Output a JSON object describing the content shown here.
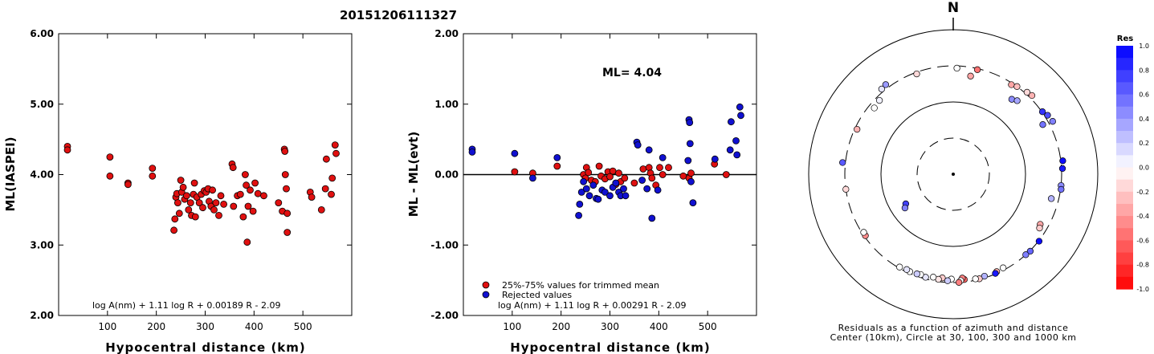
{
  "figure_title": "20151206111327",
  "chart_data": [
    {
      "type": "scatter",
      "ylabel": "ML(IASPEI)",
      "xlabel": "Hypocentral distance (km)",
      "xlim": [
        0,
        600
      ],
      "ylim": [
        2.0,
        6.0
      ],
      "x_ticks": [
        "100",
        "200",
        "300",
        "400",
        "500"
      ],
      "y_ticks": [
        "6.00",
        "5.00",
        "4.00",
        "3.00",
        "2.00"
      ],
      "formula": "log A(nm) + 1.11 log R + 0.00189 R - 2.09",
      "series": [
        {
          "color": "#e01010",
          "points": [
            [
              18,
              4.4
            ],
            [
              18,
              4.35
            ],
            [
              105,
              4.25
            ],
            [
              105,
              3.98
            ],
            [
              142,
              3.88
            ],
            [
              142,
              3.86
            ],
            [
              192,
              4.09
            ],
            [
              192,
              3.98
            ],
            [
              236,
              3.21
            ],
            [
              238,
              3.37
            ],
            [
              240,
              3.68
            ],
            [
              242,
              3.73
            ],
            [
              244,
              3.6
            ],
            [
              247,
              3.45
            ],
            [
              250,
              3.92
            ],
            [
              252,
              3.75
            ],
            [
              255,
              3.82
            ],
            [
              258,
              3.65
            ],
            [
              262,
              3.7
            ],
            [
              266,
              3.5
            ],
            [
              270,
              3.6
            ],
            [
              272,
              3.42
            ],
            [
              276,
              3.72
            ],
            [
              278,
              3.88
            ],
            [
              280,
              3.4
            ],
            [
              283,
              3.68
            ],
            [
              288,
              3.6
            ],
            [
              292,
              3.72
            ],
            [
              295,
              3.53
            ],
            [
              298,
              3.77
            ],
            [
              302,
              3.75
            ],
            [
              306,
              3.8
            ],
            [
              308,
              3.62
            ],
            [
              312,
              3.55
            ],
            [
              315,
              3.78
            ],
            [
              318,
              3.5
            ],
            [
              322,
              3.6
            ],
            [
              328,
              3.42
            ],
            [
              332,
              3.7
            ],
            [
              338,
              3.58
            ],
            [
              355,
              4.15
            ],
            [
              357,
              4.1
            ],
            [
              358,
              3.55
            ],
            [
              366,
              3.7
            ],
            [
              372,
              3.72
            ],
            [
              378,
              3.4
            ],
            [
              382,
              4.0
            ],
            [
              384,
              3.85
            ],
            [
              386,
              3.04
            ],
            [
              388,
              3.55
            ],
            [
              392,
              3.78
            ],
            [
              398,
              3.48
            ],
            [
              402,
              3.88
            ],
            [
              408,
              3.73
            ],
            [
              420,
              3.7
            ],
            [
              450,
              3.6
            ],
            [
              458,
              3.48
            ],
            [
              462,
              4.36
            ],
            [
              463,
              4.33
            ],
            [
              464,
              4.0
            ],
            [
              466,
              3.8
            ],
            [
              468,
              3.18
            ],
            [
              468,
              3.45
            ],
            [
              515,
              3.75
            ],
            [
              518,
              3.68
            ],
            [
              538,
              3.5
            ],
            [
              546,
              3.8
            ],
            [
              548,
              4.22
            ],
            [
              558,
              3.72
            ],
            [
              560,
              3.95
            ],
            [
              566,
              4.42
            ],
            [
              568,
              4.3
            ]
          ]
        }
      ]
    },
    {
      "type": "scatter",
      "ylabel": "ML - ML(evt)",
      "xlabel": "Hypocentral distance (km)",
      "xlim": [
        0,
        600
      ],
      "ylim": [
        -2.0,
        2.0
      ],
      "x_ticks": [
        "100",
        "200",
        "300",
        "400",
        "500"
      ],
      "y_ticks": [
        "2.00",
        "1.00",
        "0.00",
        "-1.00",
        "-2.00"
      ],
      "annotation": "ML= 4.04",
      "formula": "log A(nm) + 1.11 log R + 0.00291 R - 2.09",
      "reference_line": 0.0,
      "legend": [
        {
          "label": "25%-75% values for trimmed mean",
          "color": "#e01010"
        },
        {
          "label": "Rejected values",
          "color": "#1010d0"
        }
      ],
      "series": [
        {
          "name": "25%-75% values for trimmed mean",
          "color": "#e01010",
          "points": [
            [
              105,
              0.04
            ],
            [
              142,
              0.02
            ],
            [
              192,
              0.12
            ],
            [
              246,
              0.0
            ],
            [
              250,
              -0.05
            ],
            [
              252,
              0.1
            ],
            [
              256,
              0.03
            ],
            [
              262,
              -0.08
            ],
            [
              270,
              -0.1
            ],
            [
              278,
              0.12
            ],
            [
              282,
              -0.02
            ],
            [
              290,
              -0.06
            ],
            [
              296,
              0.04
            ],
            [
              300,
              -0.03
            ],
            [
              306,
              0.05
            ],
            [
              312,
              -0.14
            ],
            [
              318,
              0.02
            ],
            [
              322,
              -0.1
            ],
            [
              330,
              -0.05
            ],
            [
              350,
              -0.12
            ],
            [
              368,
              0.08
            ],
            [
              380,
              0.1
            ],
            [
              383,
              0.02
            ],
            [
              386,
              -0.05
            ],
            [
              394,
              -0.15
            ],
            [
              402,
              0.1
            ],
            [
              408,
              0.0
            ],
            [
              420,
              0.1
            ],
            [
              450,
              -0.02
            ],
            [
              462,
              -0.05
            ],
            [
              466,
              0.02
            ],
            [
              514,
              0.15
            ],
            [
              538,
              0.0
            ]
          ]
        },
        {
          "name": "Rejected values",
          "color": "#1010d0",
          "points": [
            [
              18,
              0.36
            ],
            [
              18,
              0.32
            ],
            [
              105,
              0.3
            ],
            [
              142,
              -0.05
            ],
            [
              192,
              0.24
            ],
            [
              236,
              -0.58
            ],
            [
              238,
              -0.42
            ],
            [
              242,
              -0.25
            ],
            [
              246,
              -0.1
            ],
            [
              252,
              -0.2
            ],
            [
              258,
              -0.3
            ],
            [
              266,
              -0.15
            ],
            [
              272,
              -0.34
            ],
            [
              276,
              -0.35
            ],
            [
              284,
              -0.22
            ],
            [
              290,
              -0.25
            ],
            [
              300,
              -0.3
            ],
            [
              306,
              -0.18
            ],
            [
              312,
              -0.12
            ],
            [
              318,
              -0.25
            ],
            [
              322,
              -0.3
            ],
            [
              328,
              -0.2
            ],
            [
              332,
              -0.3
            ],
            [
              355,
              0.46
            ],
            [
              357,
              0.42
            ],
            [
              366,
              -0.08
            ],
            [
              376,
              -0.2
            ],
            [
              380,
              0.35
            ],
            [
              386,
              -0.62
            ],
            [
              398,
              -0.22
            ],
            [
              408,
              0.24
            ],
            [
              460,
              0.2
            ],
            [
              462,
              0.78
            ],
            [
              463,
              0.74
            ],
            [
              464,
              0.44
            ],
            [
              466,
              -0.1
            ],
            [
              470,
              -0.4
            ],
            [
              515,
              0.22
            ],
            [
              546,
              0.35
            ],
            [
              548,
              0.75
            ],
            [
              558,
              0.48
            ],
            [
              560,
              0.28
            ],
            [
              566,
              0.96
            ],
            [
              568,
              0.84
            ]
          ]
        }
      ]
    },
    {
      "type": "scatter",
      "subtype": "polar",
      "north_label": "N",
      "caption_lines": [
        "Residuals as a function of azimuth and distance",
        "Center (10km), Circle at 30, 100, 300 and 1000 km"
      ],
      "colorbar": {
        "title": "Res",
        "ticks": [
          "1.0",
          "0.8",
          "0.6",
          "0.4",
          "0.2",
          "0.0",
          "-0.2",
          "-0.4",
          "-0.6",
          "-0.8",
          "-1.0"
        ],
        "range": [
          -1.0,
          1.0
        ],
        "positive_color": "#0000ff",
        "negative_color": "#ff0000"
      },
      "rings_km": [
        30,
        100,
        300,
        1000
      ],
      "points": [
        {
          "az": 2,
          "dist": 280,
          "res": 0.0
        },
        {
          "az": 13,
          "dist": 290,
          "res": -0.55
        },
        {
          "az": 10,
          "dist": 230,
          "res": -0.35
        },
        {
          "az": 33,
          "dist": 285,
          "res": -0.35
        },
        {
          "az": 36,
          "dist": 300,
          "res": -0.25
        },
        {
          "az": 42,
          "dist": 320,
          "res": -0.15
        },
        {
          "az": 45,
          "dist": 330,
          "res": -0.3
        },
        {
          "az": 38,
          "dist": 200,
          "res": 0.45
        },
        {
          "az": 41,
          "dist": 215,
          "res": 0.35
        },
        {
          "az": 55,
          "dist": 305,
          "res": 0.8
        },
        {
          "az": 58,
          "dist": 330,
          "res": 0.7
        },
        {
          "az": 62,
          "dist": 345,
          "res": 0.5
        },
        {
          "az": 61,
          "dist": 250,
          "res": 0.55
        },
        {
          "az": 83,
          "dist": 320,
          "res": 0.95
        },
        {
          "az": 87,
          "dist": 310,
          "res": 0.9
        },
        {
          "az": 96,
          "dist": 300,
          "res": 0.45
        },
        {
          "az": 98,
          "dist": 305,
          "res": 0.55
        },
        {
          "az": 104,
          "dist": 240,
          "res": 0.3
        },
        {
          "az": 120,
          "dist": 235,
          "res": -0.35
        },
        {
          "az": 122,
          "dist": 245,
          "res": -0.2
        },
        {
          "az": 128,
          "dist": 305,
          "res": 0.95
        },
        {
          "az": 135,
          "dist": 305,
          "res": 0.6
        },
        {
          "az": 138,
          "dist": 300,
          "res": 0.5
        },
        {
          "az": 152,
          "dist": 280,
          "res": 0.0
        },
        {
          "az": 156,
          "dist": 285,
          "res": -0.3
        },
        {
          "az": 157,
          "dist": 295,
          "res": 0.9
        },
        {
          "az": 163,
          "dist": 285,
          "res": 0.3
        },
        {
          "az": 166,
          "dist": 295,
          "res": -0.2
        },
        {
          "az": 168,
          "dist": 288,
          "res": 0.0
        },
        {
          "az": 174,
          "dist": 278,
          "res": -0.6
        },
        {
          "az": 175,
          "dist": 265,
          "res": -0.5
        },
        {
          "az": 176,
          "dist": 285,
          "res": 0.0
        },
        {
          "az": 177,
          "dist": 300,
          "res": -0.5
        },
        {
          "az": 181,
          "dist": 270,
          "res": 0.0
        },
        {
          "az": 183,
          "dist": 285,
          "res": 0.2
        },
        {
          "az": 186,
          "dist": 265,
          "res": -0.2
        },
        {
          "az": 188,
          "dist": 280,
          "res": -0.1
        },
        {
          "az": 191,
          "dist": 270,
          "res": 0.0
        },
        {
          "az": 195,
          "dist": 285,
          "res": 0.1
        },
        {
          "az": 198,
          "dist": 275,
          "res": 0.0
        },
        {
          "az": 200,
          "dist": 280,
          "res": 0.2
        },
        {
          "az": 204,
          "dist": 285,
          "res": 0.0
        },
        {
          "az": 206,
          "dist": 280,
          "res": 0.1
        },
        {
          "az": 210,
          "dist": 290,
          "res": 0.0
        },
        {
          "az": 235,
          "dist": 290,
          "res": -0.45
        },
        {
          "az": 237,
          "dist": 285,
          "res": 0.0
        },
        {
          "az": 262,
          "dist": 300,
          "res": -0.15
        },
        {
          "az": 276,
          "dist": 330,
          "res": 0.65
        },
        {
          "az": 295,
          "dist": 280,
          "res": -0.3
        },
        {
          "az": 310,
          "dist": 255,
          "res": 0.0
        },
        {
          "az": 315,
          "dist": 265,
          "res": 0.05
        },
        {
          "az": 320,
          "dist": 330,
          "res": 0.1
        },
        {
          "az": 323,
          "dist": 340,
          "res": 0.4
        },
        {
          "az": 340,
          "dist": 285,
          "res": -0.15
        },
        {
          "az": 238,
          "dist": 58,
          "res": 0.75
        },
        {
          "az": 235,
          "dist": 64,
          "res": 0.5
        }
      ]
    }
  ]
}
